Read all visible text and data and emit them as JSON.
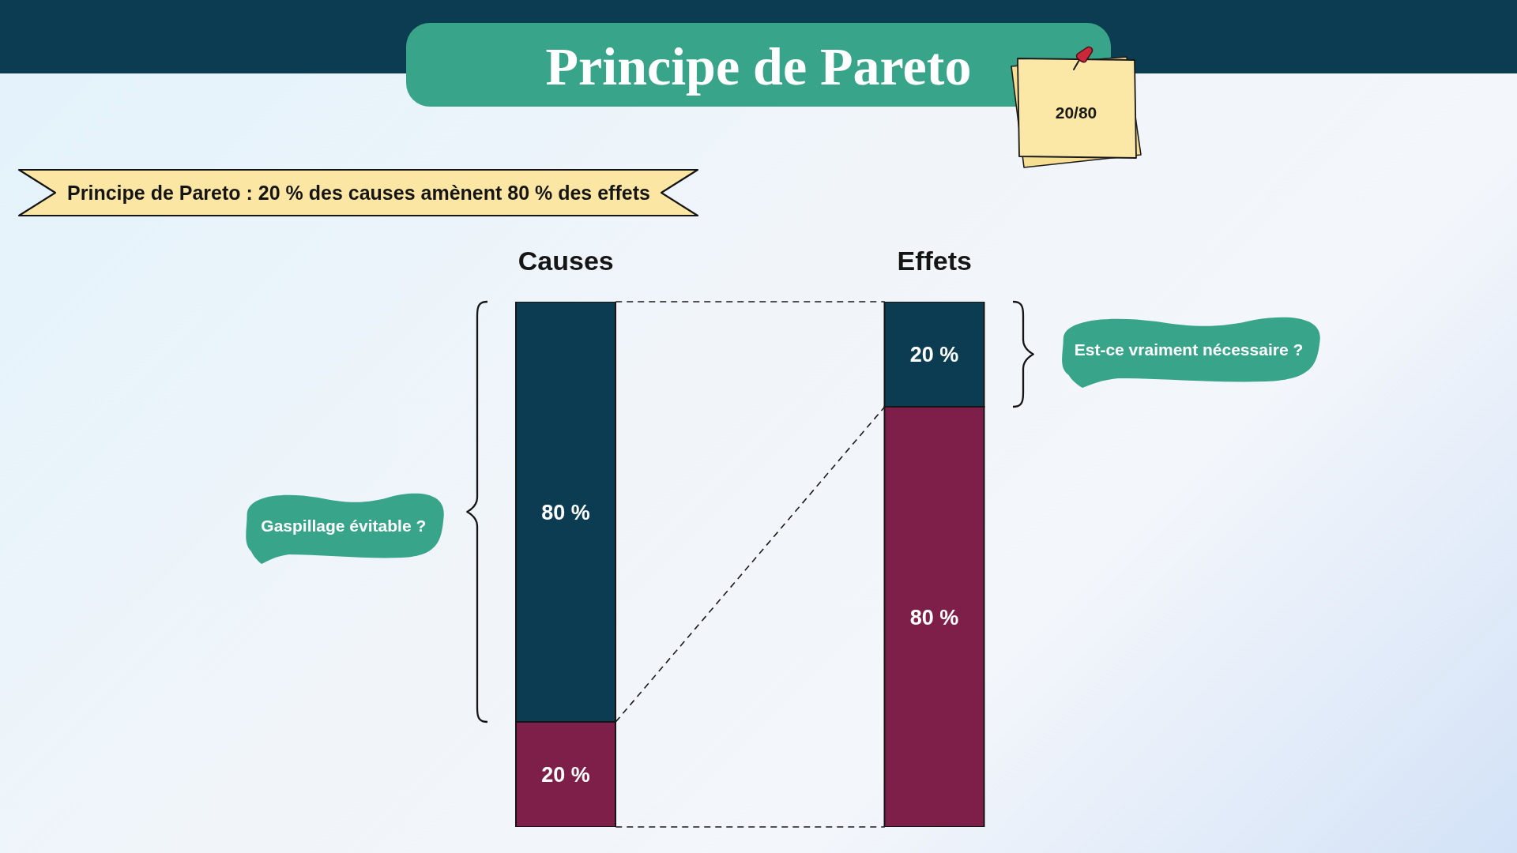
{
  "chart_data": {
    "type": "bar",
    "title": "Principe de Pareto",
    "subtitle": "Principe de Pareto : 20 % des causes amènent 80 % des effets",
    "categories": [
      "Causes",
      "Effets"
    ],
    "stacked": true,
    "tick_labels": "x",
    "series": [
      {
        "color": "#7e1f4a",
        "values": [
          20,
          80
        ],
        "value_labels": [
          "20 %",
          "80 %"
        ]
      },
      {
        "color": "#0b3c51",
        "values": [
          80,
          20
        ],
        "value_labels": [
          "80 %",
          "20 %"
        ]
      }
    ],
    "annotations": [
      "20/80",
      "Gaspillage évitable ?",
      "Est-ce vraiment nécessaire ?"
    ]
  }
}
